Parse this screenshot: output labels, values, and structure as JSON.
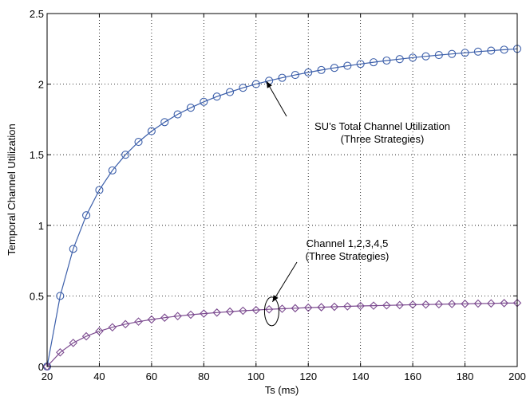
{
  "chart_data": {
    "type": "line",
    "xlabel": "Ts (ms)",
    "ylabel": "Temporal Channel Utilization",
    "xlim": [
      20,
      200
    ],
    "ylim": [
      0,
      2.5
    ],
    "xticks": [
      20,
      40,
      60,
      80,
      100,
      120,
      140,
      160,
      180,
      200
    ],
    "yticks": [
      0,
      0.5,
      1,
      1.5,
      2,
      2.5
    ],
    "ytick_labels": [
      "0",
      "0.5",
      "1",
      "1.5",
      "2",
      "2.5"
    ],
    "grid": true,
    "x": [
      20,
      25,
      30,
      35,
      40,
      45,
      50,
      55,
      60,
      65,
      70,
      75,
      80,
      85,
      90,
      95,
      100,
      105,
      110,
      115,
      120,
      125,
      130,
      135,
      140,
      145,
      150,
      155,
      160,
      165,
      170,
      175,
      180,
      185,
      190,
      195,
      200
    ],
    "series": [
      {
        "marker": "circle",
        "color": "#3c5faa",
        "values": [
          0,
          0.5,
          0.833,
          1.071,
          1.25,
          1.389,
          1.5,
          1.591,
          1.667,
          1.731,
          1.786,
          1.833,
          1.875,
          1.912,
          1.944,
          1.974,
          2.0,
          2.024,
          2.045,
          2.065,
          2.083,
          2.1,
          2.115,
          2.13,
          2.143,
          2.155,
          2.167,
          2.177,
          2.188,
          2.197,
          2.206,
          2.214,
          2.222,
          2.23,
          2.237,
          2.244,
          2.25
        ]
      },
      {
        "marker": "diamond",
        "color": "#7b4a8f",
        "values": [
          0,
          0.1,
          0.167,
          0.214,
          0.25,
          0.278,
          0.3,
          0.318,
          0.333,
          0.346,
          0.357,
          0.367,
          0.375,
          0.382,
          0.389,
          0.395,
          0.4,
          0.405,
          0.409,
          0.413,
          0.417,
          0.42,
          0.423,
          0.426,
          0.429,
          0.431,
          0.433,
          0.435,
          0.438,
          0.439,
          0.441,
          0.443,
          0.444,
          0.446,
          0.447,
          0.449,
          0.45
        ]
      }
    ],
    "annotations": [
      {
        "lines": [
          "SU’s Total Channel Utilization",
          "(Three Strategies)"
        ],
        "arrow_to": [
          104,
          2.02
        ]
      },
      {
        "lines": [
          "Channel 1,2,3,4,5",
          "(Three Strategies)"
        ],
        "arrow_to": [
          106,
          0.39
        ]
      }
    ]
  }
}
